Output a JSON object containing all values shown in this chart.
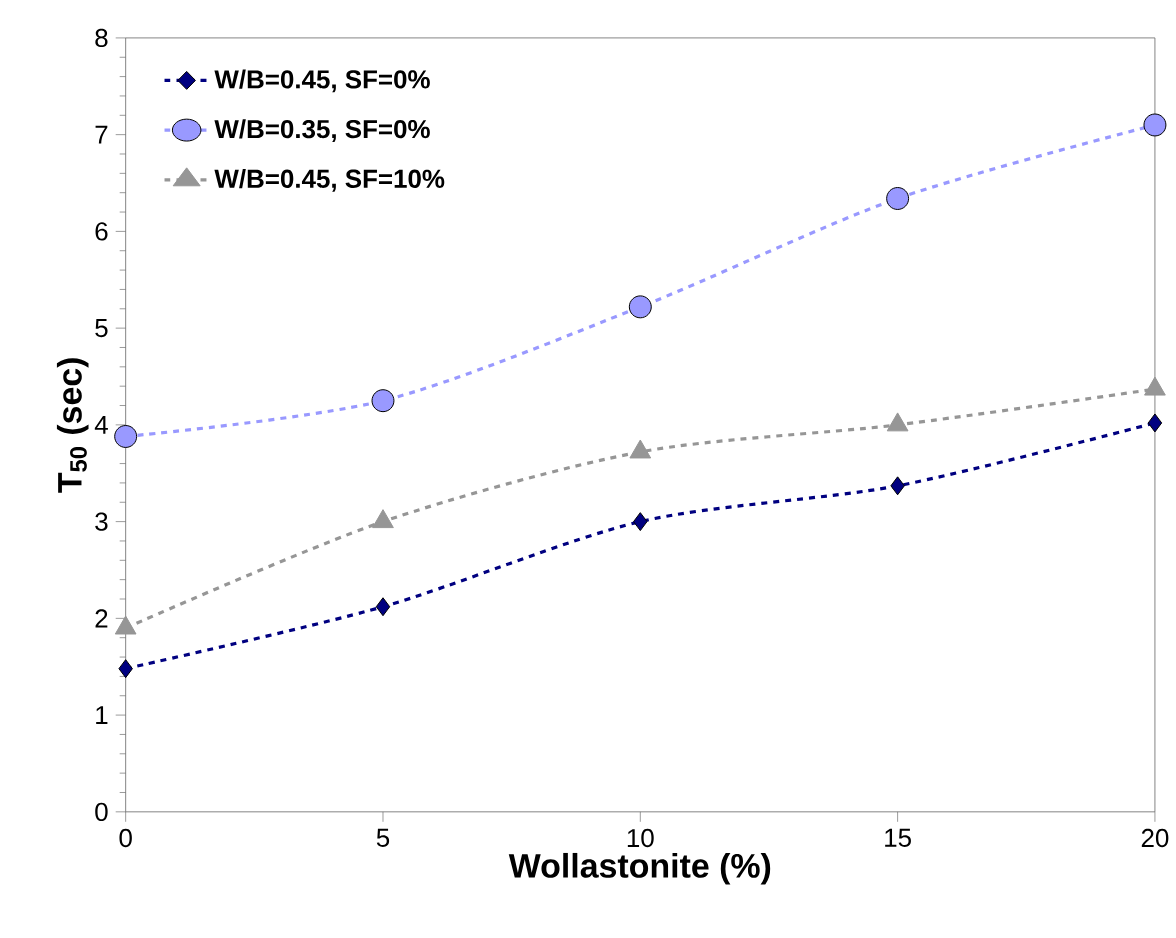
{
  "chart_data": {
    "type": "line",
    "xlabel": "Wollastonite (%)",
    "ylabel": "T$_{50}$ (sec)",
    "x": [
      0,
      5,
      10,
      15,
      20
    ],
    "series": [
      {
        "name": "W/B=0.45, SF=0%",
        "color": "#000080",
        "marker": "diamond",
        "line_style": "dashed",
        "values": [
          1.48,
          2.12,
          3.0,
          3.37,
          4.02
        ]
      },
      {
        "name": "W/B=0.35, SF=0%",
        "color": "#9999ff",
        "marker": "circle",
        "line_style": "dashed",
        "values": [
          3.88,
          4.25,
          5.22,
          6.34,
          7.1
        ]
      },
      {
        "name": "W/B=0.45, SF=10%",
        "color": "#969696",
        "marker": "triangle",
        "line_style": "dashed",
        "values": [
          1.9,
          3.0,
          3.72,
          4.0,
          4.37
        ]
      }
    ],
    "xlim": [
      0,
      20
    ],
    "xticks": [
      0,
      5,
      10,
      15,
      20
    ],
    "ylim": [
      0,
      8
    ],
    "yticks": [
      0,
      1,
      2,
      3,
      4,
      5,
      6,
      7,
      8
    ],
    "grid": false,
    "legend": "top left"
  }
}
